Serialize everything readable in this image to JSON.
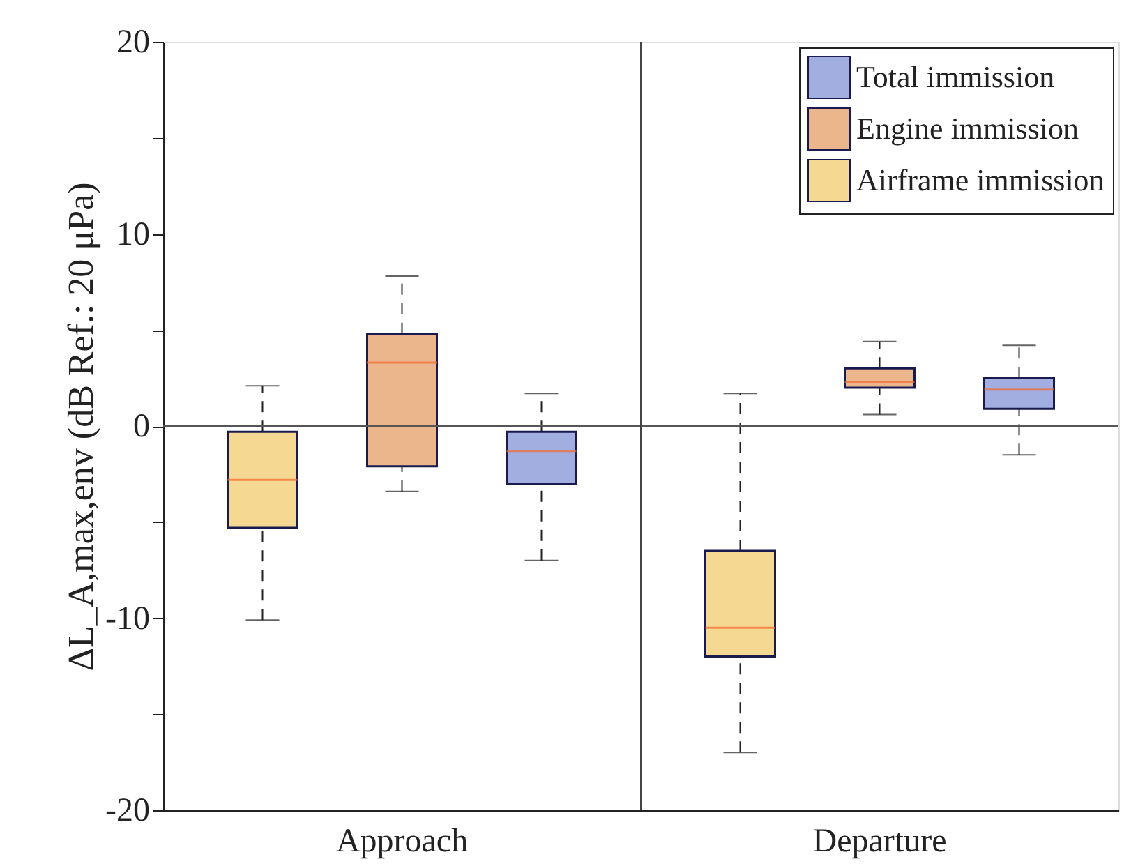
{
  "chart_data": {
    "type": "box",
    "ylabel": "ΔL_A,max,env (dB Ref.: 20 μPa)",
    "categories": [
      "Approach",
      "Departure"
    ],
    "series": [
      {
        "name": "Airframe immission",
        "color": "#f5d891",
        "boxes": [
          {
            "low": -10.1,
            "q1": -5.3,
            "median": -2.8,
            "q3": -0.3,
            "high": 2.1
          },
          {
            "low": -17.0,
            "q1": -12.0,
            "median": -10.5,
            "q3": -6.5,
            "high": 1.7
          }
        ]
      },
      {
        "name": "Engine immission",
        "color": "#ebb68c",
        "boxes": [
          {
            "low": -3.4,
            "q1": -2.1,
            "median": 3.3,
            "q3": 4.8,
            "high": 7.8
          },
          {
            "low": 0.6,
            "q1": 2.0,
            "median": 2.3,
            "q3": 3.0,
            "high": 4.4
          }
        ]
      },
      {
        "name": "Total immission",
        "color": "#a2aee0",
        "boxes": [
          {
            "low": -7.0,
            "q1": -3.0,
            "median": -1.3,
            "q3": -0.3,
            "high": 1.7
          },
          {
            "low": -1.5,
            "q1": 0.9,
            "median": 1.9,
            "q3": 2.5,
            "high": 4.2
          }
        ]
      }
    ],
    "ylim": [
      -20,
      20
    ],
    "yticks": [
      -20,
      {
        "value": -15,
        "label": null
      },
      -10,
      {
        "value": -5,
        "label": null
      },
      0,
      {
        "value": 5,
        "label": null
      },
      10,
      {
        "value": 15,
        "label": null
      },
      20
    ],
    "ref_lines": [
      {
        "axis": "y",
        "value": 0
      },
      {
        "axis": "x",
        "value": "Departure",
        "color": "#444444"
      }
    ],
    "legend": "top right"
  }
}
